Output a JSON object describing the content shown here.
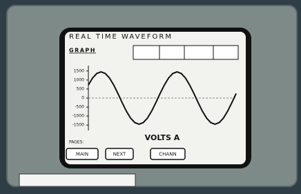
{
  "header": {
    "title": "REAL TIME WAVEFORM",
    "section": "GRAPH"
  },
  "chart_data": {
    "type": "line",
    "title": "VOLTS A",
    "color": "#111111",
    "values": [
      725,
      1111,
      1363,
      1450,
      1363,
      1111,
      725,
      252,
      -252,
      -725,
      -1111,
      -1363,
      -1450,
      -1363,
      -1111,
      -725,
      -252,
      252,
      725,
      1111,
      1363,
      1450,
      1363,
      1111,
      725,
      252,
      -252,
      -725,
      -1111,
      -1363,
      -1450,
      -1363,
      -1111,
      -725,
      -252,
      252
    ],
    "ylim": [
      -1800,
      1800
    ],
    "yticks": [
      1500,
      1000,
      500,
      0,
      -500,
      -1000,
      -1500
    ],
    "zero_line": true
  },
  "footer": {
    "pages_label": "PAGES:",
    "buttons": [
      "MAIN",
      "NEXT",
      "CHANN"
    ]
  }
}
